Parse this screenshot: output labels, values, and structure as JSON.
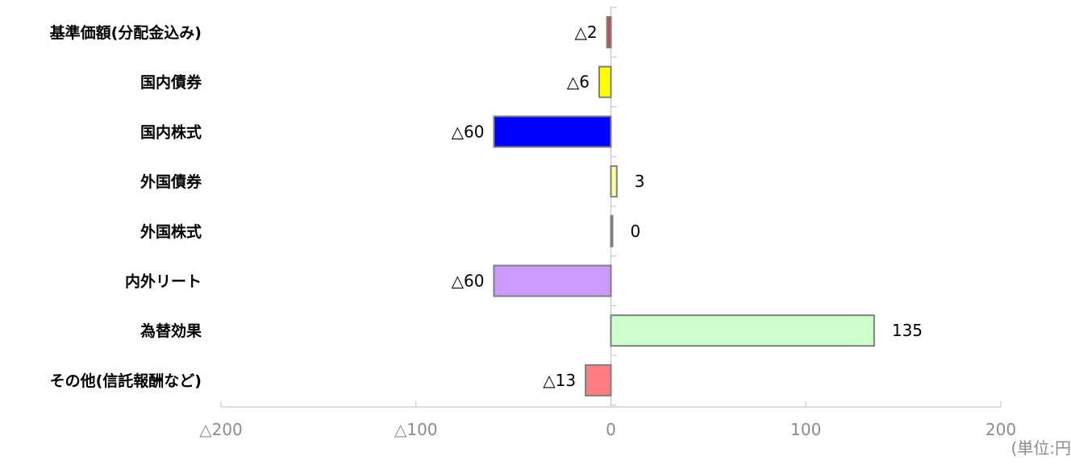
{
  "chart_data": {
    "type": "bar",
    "orientation": "horizontal",
    "categories": [
      "基準価額(分配金込み)",
      "国内債券",
      "国内株式",
      "外国債券",
      "外国株式",
      "内外リート",
      "為替効果",
      "その他(信託報酬など)"
    ],
    "values": [
      -2,
      -6,
      -60,
      3,
      0,
      -60,
      135,
      -13
    ],
    "value_labels": [
      "△2",
      "△6",
      "△60",
      "3",
      "0",
      "△60",
      "135",
      "△13"
    ],
    "bar_colors": [
      "#c0504d",
      "#ffff00",
      "#0000ff",
      "#ffff99",
      "#bfbfbf",
      "#cc99ff",
      "#ccffcc",
      "#ff7c80"
    ],
    "bar_stroke": "#7f7f7f",
    "xlim": [
      -200,
      200
    ],
    "xticks": [
      -200,
      -100,
      0,
      100,
      200
    ],
    "xtick_labels": [
      "△200",
      "△100",
      "0",
      "100",
      "200"
    ],
    "unit_label": "(単位:円",
    "grid": false,
    "legend": "none"
  }
}
